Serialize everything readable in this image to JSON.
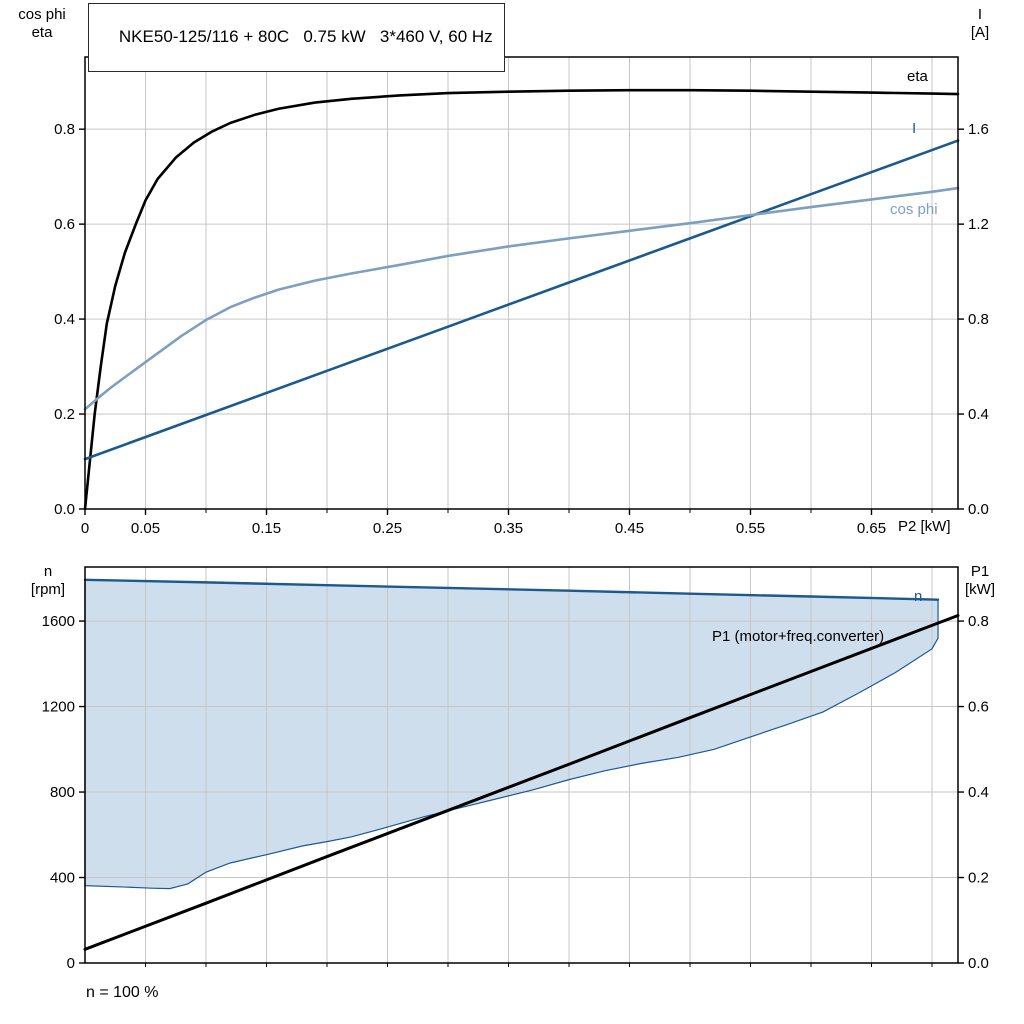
{
  "title": "NKE50-125/116 + 80C   0.75 kW   3*460 V, 60 Hz",
  "footnote": "n = 100 %",
  "labels": {
    "top_left_axis": "cos phi\neta",
    "top_right_axis": "I\n[A]",
    "bottom_left_axis": "n\n[rpm]",
    "bottom_right_axis": "P1\n[kW]",
    "x_axis_title": "P2 [kW]",
    "curve_eta": "eta",
    "curve_current": "I",
    "curve_cosphi": "cos phi",
    "curve_speed": "n",
    "curve_p1": "P1 (motor+freq.converter)"
  },
  "colors": {
    "black": "#000000",
    "dark_blue": "#1c5a8d",
    "light_blue": "#7f9fbf",
    "area_fill": "#cfdeed",
    "grid": "#c6c6c6",
    "frame": "#000000"
  },
  "chart_data": [
    {
      "type": "line",
      "title": "NKE50-125/116 + 80C   0.75 kW   3*460 V, 60 Hz",
      "x_axis": {
        "title": "P2 [kW]",
        "min": 0,
        "max": 0.7215,
        "ticks": [
          [
            0,
            "0"
          ],
          [
            0.05,
            "0.05"
          ],
          [
            0.15,
            "0.15"
          ],
          [
            0.25,
            "0.25"
          ],
          [
            0.35,
            "0.35"
          ],
          [
            0.45,
            "0.45"
          ],
          [
            0.55,
            "0.55"
          ],
          [
            0.65,
            "0.65"
          ]
        ],
        "grid": [
          0.05,
          0.1,
          0.15,
          0.2,
          0.25,
          0.3,
          0.35,
          0.4,
          0.45,
          0.5,
          0.55,
          0.6,
          0.65,
          0.7
        ]
      },
      "y_left": {
        "title": "cos phi / eta",
        "min": 0,
        "max": 0.952,
        "ticks": [
          [
            0,
            "0.0"
          ],
          [
            0.2,
            "0.2"
          ],
          [
            0.4,
            "0.4"
          ],
          [
            0.6,
            "0.6"
          ],
          [
            0.8,
            "0.8"
          ]
        ],
        "grid": [
          0.2,
          0.4,
          0.6,
          0.8
        ]
      },
      "y_right": {
        "title": "I [A]",
        "min": 0,
        "max": 1.904,
        "ticks": [
          [
            0,
            "0.0"
          ],
          [
            0.4,
            "0.4"
          ],
          [
            0.8,
            "0.8"
          ],
          [
            1.2,
            "1.2"
          ],
          [
            1.6,
            "1.6"
          ]
        ]
      },
      "series": [
        {
          "name": "eta",
          "axis": "left",
          "color": "#000000",
          "width": 2.6,
          "points": [
            [
              0,
              0
            ],
            [
              0.004,
              0.1
            ],
            [
              0.008,
              0.2
            ],
            [
              0.013,
              0.3
            ],
            [
              0.018,
              0.39
            ],
            [
              0.025,
              0.47
            ],
            [
              0.033,
              0.54
            ],
            [
              0.042,
              0.6
            ],
            [
              0.05,
              0.65
            ],
            [
              0.06,
              0.695
            ],
            [
              0.075,
              0.74
            ],
            [
              0.09,
              0.772
            ],
            [
              0.105,
              0.795
            ],
            [
              0.12,
              0.813
            ],
            [
              0.14,
              0.83
            ],
            [
              0.16,
              0.843
            ],
            [
              0.19,
              0.856
            ],
            [
              0.22,
              0.864
            ],
            [
              0.26,
              0.871
            ],
            [
              0.3,
              0.876
            ],
            [
              0.35,
              0.879
            ],
            [
              0.4,
              0.881
            ],
            [
              0.45,
              0.882
            ],
            [
              0.5,
              0.882
            ],
            [
              0.55,
              0.881
            ],
            [
              0.6,
              0.879
            ],
            [
              0.65,
              0.877
            ],
            [
              0.7,
              0.875
            ],
            [
              0.7215,
              0.874
            ]
          ]
        },
        {
          "name": "I",
          "axis": "right",
          "color": "#1c5a8d",
          "width": 2.6,
          "points": [
            [
              0,
              0.21
            ],
            [
              0.1,
              0.396
            ],
            [
              0.2,
              0.582
            ],
            [
              0.3,
              0.768
            ],
            [
              0.4,
              0.954
            ],
            [
              0.5,
              1.14
            ],
            [
              0.6,
              1.326
            ],
            [
              0.7,
              1.512
            ],
            [
              0.7215,
              1.552
            ]
          ]
        },
        {
          "name": "cos phi",
          "axis": "left",
          "color": "#7f9fbf",
          "width": 2.6,
          "points": [
            [
              0,
              0.21
            ],
            [
              0.01,
              0.232
            ],
            [
              0.02,
              0.253
            ],
            [
              0.03,
              0.272
            ],
            [
              0.045,
              0.3
            ],
            [
              0.06,
              0.328
            ],
            [
              0.08,
              0.365
            ],
            [
              0.1,
              0.398
            ],
            [
              0.12,
              0.425
            ],
            [
              0.14,
              0.445
            ],
            [
              0.16,
              0.462
            ],
            [
              0.19,
              0.481
            ],
            [
              0.22,
              0.496
            ],
            [
              0.26,
              0.514
            ],
            [
              0.3,
              0.533
            ],
            [
              0.35,
              0.553
            ],
            [
              0.4,
              0.57
            ],
            [
              0.45,
              0.586
            ],
            [
              0.5,
              0.602
            ],
            [
              0.55,
              0.619
            ],
            [
              0.6,
              0.636
            ],
            [
              0.65,
              0.652
            ],
            [
              0.7,
              0.668
            ],
            [
              0.7215,
              0.676
            ]
          ]
        }
      ]
    },
    {
      "type": "line",
      "title": "Speed and input power",
      "x_axis": {
        "title": "",
        "min": 0,
        "max": 0.7215,
        "ticks": [],
        "grid": [
          0.05,
          0.1,
          0.15,
          0.2,
          0.25,
          0.3,
          0.35,
          0.4,
          0.45,
          0.5,
          0.55,
          0.6,
          0.65,
          0.7
        ]
      },
      "y_left": {
        "title": "n [rpm]",
        "min": 0,
        "max": 1853,
        "ticks": [
          [
            0,
            "0"
          ],
          [
            400,
            "400"
          ],
          [
            800,
            "800"
          ],
          [
            1200,
            "1200"
          ],
          [
            1600,
            "1600"
          ]
        ],
        "grid": [
          400,
          800,
          1200,
          1600
        ]
      },
      "y_right": {
        "title": "P1 [kW]",
        "min": 0,
        "max": 0.9265,
        "ticks": [
          [
            0,
            "0.0"
          ],
          [
            0.2,
            "0.2"
          ],
          [
            0.4,
            "0.4"
          ],
          [
            0.6,
            "0.6"
          ],
          [
            0.8,
            "0.8"
          ]
        ]
      },
      "area": {
        "name": "speed-control-range",
        "fill": "#cfdeed",
        "stroke": "#1c5a8d",
        "upper_series": "n",
        "lower": [
          [
            0,
            362
          ],
          [
            0.03,
            356
          ],
          [
            0.055,
            350
          ],
          [
            0.07,
            348
          ],
          [
            0.085,
            370
          ],
          [
            0.1,
            425
          ],
          [
            0.12,
            468
          ],
          [
            0.15,
            507
          ],
          [
            0.18,
            548
          ],
          [
            0.2,
            568
          ],
          [
            0.22,
            590
          ],
          [
            0.25,
            636
          ],
          [
            0.28,
            684
          ],
          [
            0.31,
            726
          ],
          [
            0.34,
            768
          ],
          [
            0.37,
            810
          ],
          [
            0.4,
            858
          ],
          [
            0.43,
            900
          ],
          [
            0.46,
            934
          ],
          [
            0.49,
            962
          ],
          [
            0.52,
            1000
          ],
          [
            0.55,
            1058
          ],
          [
            0.58,
            1115
          ],
          [
            0.61,
            1175
          ],
          [
            0.64,
            1265
          ],
          [
            0.67,
            1360
          ],
          [
            0.7,
            1470
          ],
          [
            0.705,
            1520
          ]
        ]
      },
      "series": [
        {
          "name": "n",
          "axis": "left",
          "color": "#1c5a8d",
          "width": 2.4,
          "points": [
            [
              0,
              1793
            ],
            [
              0.1,
              1781
            ],
            [
              0.2,
              1768
            ],
            [
              0.3,
              1755
            ],
            [
              0.4,
              1742
            ],
            [
              0.5,
              1728
            ],
            [
              0.6,
              1715
            ],
            [
              0.705,
              1700
            ]
          ]
        },
        {
          "name": "P1 (motor+freq.converter)",
          "axis": "right",
          "color": "#000000",
          "width": 3,
          "points": [
            [
              0,
              0.032
            ],
            [
              0.1,
              0.14
            ],
            [
              0.2,
              0.249
            ],
            [
              0.3,
              0.357
            ],
            [
              0.4,
              0.465
            ],
            [
              0.5,
              0.574
            ],
            [
              0.6,
              0.682
            ],
            [
              0.7,
              0.79
            ],
            [
              0.7215,
              0.813
            ]
          ]
        }
      ],
      "footnote": "n = 100 %"
    }
  ]
}
